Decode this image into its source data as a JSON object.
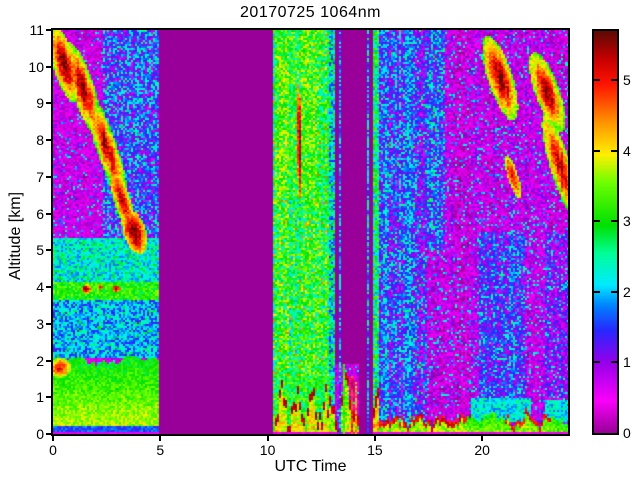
{
  "figure": {
    "background": "#ffffff",
    "axis_color": "#000000"
  },
  "chart_data": {
    "type": "heatmap",
    "title": "20170725 1064nm",
    "xlabel": "UTC Time",
    "ylabel": "Altitude [km]",
    "x_range": [
      0,
      24
    ],
    "y_range": [
      0,
      11
    ],
    "x_ticks": [
      0,
      5,
      10,
      15,
      20
    ],
    "x_tick_labels": [
      "0",
      "5",
      "10",
      "15",
      "20"
    ],
    "y_ticks": [
      0,
      1,
      2,
      3,
      4,
      5,
      6,
      7,
      8,
      9,
      10,
      11
    ],
    "y_tick_labels": [
      "0",
      "1",
      "2",
      "3",
      "4",
      "5",
      "6",
      "7",
      "8",
      "9",
      "10",
      "11"
    ],
    "grid": false,
    "colorbar": {
      "position": "right",
      "min": 0,
      "max": 5.7,
      "ticks": [
        0,
        1,
        2,
        3,
        4,
        5
      ],
      "tick_labels": [
        "0",
        "1",
        "2",
        "3",
        "4",
        "5"
      ]
    },
    "colormap": {
      "nodata_color": "#990099",
      "stops": [
        [
          0.0,
          153,
          0,
          153
        ],
        [
          0.45,
          250,
          0,
          250
        ],
        [
          1.0,
          150,
          0,
          235
        ],
        [
          1.45,
          40,
          40,
          255
        ],
        [
          1.8,
          0,
          130,
          255
        ],
        [
          2.1,
          0,
          235,
          255
        ],
        [
          2.55,
          0,
          255,
          150
        ],
        [
          2.95,
          0,
          225,
          0
        ],
        [
          3.55,
          110,
          255,
          0
        ],
        [
          3.95,
          255,
          240,
          0
        ],
        [
          4.4,
          255,
          150,
          0
        ],
        [
          4.95,
          255,
          20,
          0
        ],
        [
          5.3,
          200,
          0,
          0
        ],
        [
          5.7,
          95,
          10,
          5
        ]
      ]
    },
    "features": [
      "Nighttime aerosol boundary layer (green, ~3) up to ~2 km from 00:00-04:55 UTC with red patch near 1.8 km at 00:00-00:54",
      "Secondary aerosol layer ~3.7-4.1 km with small dark-red cores, 00:00-04:55 UTC",
      "Cirrus / elevated cloud layers (dark red >5) 6-11 km, 00:00-04:00 UTC, descending streaks",
      "No-data gaps (flat purple): ~04:55-10:15 UTC and ~13:06-14:51 UTC (thin data columns near 13:20, 13:55, 14:37)",
      "Bright noisy daytime column 10:15-12:51 UTC full depth, dark-red vertical streak near 11:27 at 6.5-9.5 km",
      "Convective boundary layer with strong dark-red top 0.3-1 km from ~10:30 to ~19:20 UTC",
      "Blue/cyan noise columns 15:09-17:24 UTC and 19:48-22:00 UTC",
      "Cirrus clouds 8-11 km around 20:00-21:30 UTC and 22:30-24:00 UTC descending to ~5.5 km",
      "Shallow cyan/green surface layer below ~1 km from 17:24-24:00 UTC"
    ],
    "render": {
      "seed": 20170725,
      "cell": 2,
      "vmax": 5.7,
      "bands": [
        {
          "t0": 0,
          "t1": 4.92,
          "h0": 0,
          "h1": 11,
          "base": 0.55,
          "n": 0.45,
          "sp": 0.1,
          "spv": 2.0,
          "cn": 0.2
        },
        {
          "t0": 2.3,
          "t1": 4.92,
          "h0": 5.0,
          "h1": 11,
          "base": 1.35,
          "n": 0.7,
          "sp": 0.22,
          "spv": 2.3,
          "cn": 0.3
        },
        {
          "t0": 0,
          "t1": 4.92,
          "h0": 2.05,
          "h1": 3.65,
          "base": 1.9,
          "n": 0.6,
          "sp": 0.15,
          "spv": 2.5
        },
        {
          "t0": 0,
          "t1": 4.92,
          "h0": 3.65,
          "h1": 4.15,
          "base": 3.15,
          "n": 0.5
        },
        {
          "t0": 0,
          "t1": 4.92,
          "h0": 4.15,
          "h1": 5.35,
          "base": 2.3,
          "n": 0.6
        },
        {
          "t0": 4.92,
          "t1": 10.25,
          "h0": 0,
          "h1": 11,
          "flat": 0
        },
        {
          "t0": 10.25,
          "t1": 12.85,
          "h0": 0,
          "h1": 11,
          "base": 2.95,
          "n": 0.85,
          "sp": 0.06,
          "spv": 4.2,
          "cn": 0.3
        },
        {
          "t0": 10.4,
          "t1": 12.3,
          "h0": 6.5,
          "h1": 11,
          "base": 3.2,
          "n": 0.8,
          "cn": 0.3
        },
        {
          "t0": 10.25,
          "t1": 12.85,
          "h0": 0,
          "h1": 1.6,
          "base": 3.0,
          "n": 0.7
        },
        {
          "t0": 12.85,
          "t1": 13.1,
          "h0": 0,
          "h1": 11,
          "base": 2.3,
          "n": 0.9
        },
        {
          "t0": 13.1,
          "t1": 14.55,
          "h0": 1.9,
          "h1": 11,
          "flat": 0
        },
        {
          "t0": 13.1,
          "t1": 14.2,
          "h0": 0,
          "h1": 1.9,
          "base": 0.6,
          "n": 0.5,
          "sp": 0.1,
          "spv": 2.2
        },
        {
          "t0": 14.2,
          "t1": 14.85,
          "h0": 0,
          "h1": 11,
          "flat": 0
        },
        {
          "t0": 14.85,
          "t1": 15.15,
          "h0": 0,
          "h1": 11,
          "base": 2.7,
          "n": 0.9
        },
        {
          "t0": 15.15,
          "t1": 17.4,
          "h0": 0,
          "h1": 11,
          "base": 1.45,
          "n": 0.7,
          "sp": 0.12,
          "spv": 2.4,
          "cn": 0.5
        },
        {
          "t0": 17.4,
          "t1": 24,
          "h0": 0,
          "h1": 11,
          "base": 0.6,
          "n": 0.5,
          "sp": 0.12,
          "spv": 2.1,
          "cn": 0.28
        },
        {
          "t0": 17.4,
          "t1": 18.2,
          "h0": 5.0,
          "h1": 11,
          "base": 1.5,
          "n": 0.65,
          "sp": 0.2,
          "spv": 2.4,
          "cn": 0.3
        },
        {
          "t0": 19.8,
          "t1": 22.0,
          "h0": 1.0,
          "h1": 5.5,
          "base": 1.3,
          "n": 0.6,
          "sp": 0.18,
          "spv": 2.2,
          "cn": 0.3
        },
        {
          "t0": 22.9,
          "t1": 24,
          "h0": 1.0,
          "h1": 5.5,
          "base": 1.05,
          "n": 0.55,
          "sp": 0.15,
          "spv": 2.1,
          "cn": 0.3
        },
        {
          "t0": 19.4,
          "t1": 22.2,
          "h0": 0.3,
          "h1": 1.0,
          "base": 2.2,
          "n": 0.5
        },
        {
          "t0": 22.9,
          "t1": 24,
          "h0": 0.3,
          "h1": 0.9,
          "base": 2.2,
          "n": 0.5
        },
        {
          "t0": 0,
          "t1": 4.92,
          "h0": 0.08,
          "h1": 0.2,
          "base": 1.6,
          "n": 0.3
        },
        {
          "t0": 0,
          "t1": 4.92,
          "h0": 0,
          "h1": 0.08,
          "base": 0.45,
          "n": 0.2
        },
        {
          "t0": 10.25,
          "t1": 14.2,
          "h0": 0,
          "h1": 0.07,
          "base": 0.45,
          "n": 0.2
        },
        {
          "t0": 14.85,
          "t1": 24,
          "h0": 0,
          "h1": 0.07,
          "base": 0.45,
          "n": 0.2
        }
      ],
      "surfaces": [
        {
          "t0": 0,
          "t1": 4.92,
          "h": 2.0,
          "amp": 0.08,
          "f": 2.0,
          "jit": 0.1,
          "body": 2.95,
          "grad": 0.9,
          "n": 0.35,
          "hmin": 0.2
        },
        {
          "t0": 10.3,
          "t1": 12.85,
          "h": 0.75,
          "amp": 0.45,
          "f": 9.0,
          "jit": 0.5,
          "crust": 5.35,
          "ct": 0.22,
          "body": 3.7,
          "grad": 0.3,
          "n": 0.5,
          "hmin": 0.07
        },
        {
          "t0": 12.85,
          "t1": 14.2,
          "h": 0.9,
          "amp": 0.55,
          "f": 7.5,
          "jit": 0.6,
          "crust": 5.3,
          "ct": 0.25,
          "body": 3.4,
          "grad": 0.4,
          "n": 0.6,
          "hmin": 0.07
        },
        {
          "t0": 14.85,
          "t1": 15.15,
          "h": 0.85,
          "amp": 0.2,
          "f": 8.0,
          "jit": 0.3,
          "crust": 5.3,
          "ct": 0.3,
          "body": 3.9,
          "grad": 0.3,
          "n": 0.5,
          "hmin": 0.07
        },
        {
          "t0": 15.15,
          "t1": 19.3,
          "h": 0.4,
          "amp": 0.1,
          "f": 6.0,
          "jit": 0.2,
          "crust": 5.05,
          "ct": 0.14,
          "body": 3.3,
          "grad": 0.5,
          "n": 0.4,
          "hmin": 0.07
        },
        {
          "t0": 19.3,
          "t1": 21.0,
          "h": 0.45,
          "amp": 0.1,
          "f": 5.0,
          "jit": 0.15,
          "body": 3.1,
          "grad": 0.5,
          "n": 0.35,
          "hmin": 0.07
        },
        {
          "t0": 21.0,
          "t1": 23.2,
          "h": 0.42,
          "amp": 0.12,
          "f": 5.5,
          "jit": 0.2,
          "crust": 5.0,
          "ct": 0.14,
          "body": 3.2,
          "grad": 0.45,
          "n": 0.4,
          "hmin": 0.07
        },
        {
          "t0": 23.2,
          "t1": 24,
          "h": 0.4,
          "amp": 0.08,
          "f": 6.0,
          "jit": 0.15,
          "body": 3.0,
          "grad": 0.45,
          "n": 0.4,
          "hmin": 0.07
        }
      ],
      "blobs": [
        {
          "t": 0.5,
          "h": 10.1,
          "rt": 0.55,
          "rh": 1.05,
          "sl": 0.45,
          "core": 5.65,
          "edge": 3.4
        },
        {
          "t": 1.4,
          "h": 9.4,
          "rt": 0.55,
          "rh": 1.25,
          "sl": 0.5,
          "core": 5.6,
          "edge": 3.3
        },
        {
          "t": 2.5,
          "h": 7.8,
          "rt": 0.5,
          "rh": 1.5,
          "sl": 0.55,
          "core": 5.5,
          "edge": 3.2
        },
        {
          "t": 3.2,
          "h": 6.4,
          "rt": 0.4,
          "rh": 1.0,
          "sl": 0.5,
          "core": 5.45,
          "edge": 3.3
        },
        {
          "t": 3.8,
          "h": 5.5,
          "rt": 0.55,
          "rh": 0.6,
          "sl": 0.4,
          "core": 5.65,
          "edge": 3.8
        },
        {
          "t": 0.3,
          "h": 1.8,
          "rt": 0.55,
          "rh": 0.27,
          "sl": 0,
          "core": 5.1,
          "edge": 3.6
        },
        {
          "t": 1.55,
          "h": 3.95,
          "rt": 0.22,
          "rh": 0.12,
          "sl": 0,
          "core": 5.55,
          "edge": 4.2
        },
        {
          "t": 2.95,
          "h": 3.95,
          "rt": 0.18,
          "rh": 0.1,
          "sl": 0,
          "core": 5.5,
          "edge": 4.2
        },
        {
          "t": 2.2,
          "h": 4.0,
          "rt": 0.1,
          "rh": 0.08,
          "sl": 0,
          "core": 5.3,
          "edge": 4.3
        },
        {
          "t": 11.45,
          "h": 8.0,
          "rt": 0.1,
          "rh": 1.6,
          "sl": 0.02,
          "core": 5.6,
          "edge": 4.3
        },
        {
          "t": 20.8,
          "h": 9.7,
          "rt": 0.6,
          "rh": 1.15,
          "sl": 0.5,
          "core": 5.65,
          "edge": 3.4
        },
        {
          "t": 21.4,
          "h": 7.0,
          "rt": 0.25,
          "rh": 0.6,
          "sl": 0.5,
          "core": 5.3,
          "edge": 3.7
        },
        {
          "t": 23.0,
          "h": 9.3,
          "rt": 0.6,
          "rh": 1.1,
          "sl": 0.55,
          "core": 5.6,
          "edge": 3.3
        },
        {
          "t": 23.6,
          "h": 7.3,
          "rt": 0.5,
          "rh": 1.4,
          "sl": 0.5,
          "core": 5.55,
          "edge": 3.4
        }
      ],
      "vlines": [
        {
          "t": 13.32,
          "w": 0.08,
          "v": 1.7,
          "n": 0.7,
          "hmax": 11
        },
        {
          "t": 13.5,
          "w": 0.1,
          "v": 3.1,
          "n": 0.5,
          "hmax": 1.9
        },
        {
          "t": 13.92,
          "w": 0.1,
          "v": 4.9,
          "n": 0.4,
          "hmax": 1.6
        },
        {
          "t": 14.08,
          "w": 0.07,
          "v": 4.5,
          "n": 0.4,
          "hmax": 1.4
        },
        {
          "t": 14.62,
          "w": 0.12,
          "v": 1.9,
          "n": 0.8,
          "hmax": 11
        },
        {
          "t": 16.1,
          "w": 0.07,
          "v": 0.8,
          "n": 0.3,
          "hmax": 11
        },
        {
          "t": 16.75,
          "w": 0.07,
          "v": 0.8,
          "n": 0.3,
          "hmax": 11
        }
      ]
    }
  }
}
